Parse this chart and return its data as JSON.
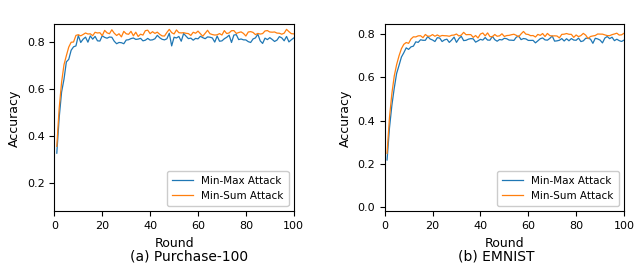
{
  "title_a": "(a) Purchase-100",
  "title_b": "(b) EMNIST",
  "xlabel": "Round",
  "ylabel": "Accuracy",
  "legend_labels": [
    "Min-Max Attack",
    "Min-Sum Attack"
  ],
  "color_minmax": "#1f77b4",
  "color_minsum": "#ff7f0e",
  "xlim": [
    0,
    100
  ],
  "ylim_a": [
    0.08,
    0.875
  ],
  "ylim_b": [
    -0.02,
    0.845
  ],
  "yticks_a": [
    0.2,
    0.4,
    0.6,
    0.8
  ],
  "yticks_b": [
    0.0,
    0.2,
    0.4,
    0.6,
    0.8
  ],
  "xticks": [
    0,
    20,
    40,
    60,
    80,
    100
  ],
  "n_rounds": 100,
  "linewidth": 0.9
}
